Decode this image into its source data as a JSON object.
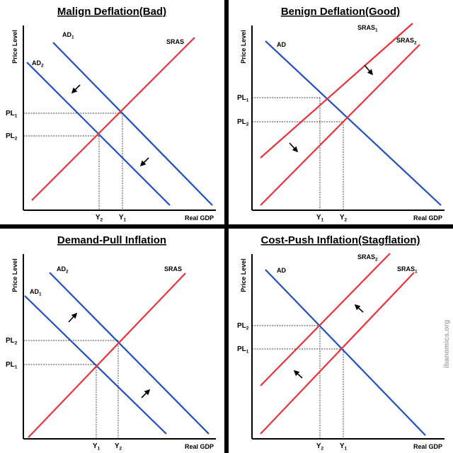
{
  "panels": [
    {
      "title": "Malign Deflation(Bad)",
      "y_axis_label": "Price Level",
      "x_axis_label": "Real GDP",
      "curves": [
        {
          "base": "AD",
          "sub": "1",
          "color": "#1f4fbf"
        },
        {
          "base": "AD",
          "sub": "2",
          "color": "#1f4fbf"
        },
        {
          "base": "SRAS",
          "sub": "",
          "color": "#e8333a"
        }
      ],
      "price_ticks": [
        {
          "base": "PL",
          "sub": "1"
        },
        {
          "base": "PL",
          "sub": "2"
        }
      ],
      "output_ticks": [
        {
          "base": "Y",
          "sub": "2"
        },
        {
          "base": "Y",
          "sub": "1"
        }
      ],
      "arrows": [
        "south-west",
        "south-west"
      ]
    },
    {
      "title": "Benign Deflation(Good)",
      "y_axis_label": "Price Level",
      "x_axis_label": "Real GDP",
      "curves": [
        {
          "base": "AD",
          "sub": "",
          "color": "#1f4fbf"
        },
        {
          "base": "SRAS",
          "sub": "1",
          "color": "#e8333a"
        },
        {
          "base": "SRAS",
          "sub": "2",
          "color": "#e8333a"
        }
      ],
      "price_ticks": [
        {
          "base": "PL",
          "sub": "1"
        },
        {
          "base": "PL",
          "sub": "2"
        }
      ],
      "output_ticks": [
        {
          "base": "Y",
          "sub": "1"
        },
        {
          "base": "Y",
          "sub": "2"
        }
      ],
      "arrows": [
        "south-east",
        "south-east"
      ]
    },
    {
      "title": "Demand-Pull Inflation",
      "y_axis_label": "Price Level",
      "x_axis_label": "Real GDP",
      "curves": [
        {
          "base": "AD",
          "sub": "2",
          "color": "#1f4fbf"
        },
        {
          "base": "AD",
          "sub": "1",
          "color": "#1f4fbf"
        },
        {
          "base": "SRAS",
          "sub": "",
          "color": "#e8333a"
        }
      ],
      "price_ticks": [
        {
          "base": "PL",
          "sub": "2"
        },
        {
          "base": "PL",
          "sub": "1"
        }
      ],
      "output_ticks": [
        {
          "base": "Y",
          "sub": "1"
        },
        {
          "base": "Y",
          "sub": "2"
        }
      ],
      "arrows": [
        "north-east",
        "north-east"
      ]
    },
    {
      "title": "Cost-Push Inflation(Stagflation)",
      "y_axis_label": "Price Level",
      "x_axis_label": "Real GDP",
      "curves": [
        {
          "base": "AD",
          "sub": "",
          "color": "#1f4fbf"
        },
        {
          "base": "SRAS",
          "sub": "2",
          "color": "#e8333a"
        },
        {
          "base": "SRAS",
          "sub": "1",
          "color": "#e8333a"
        }
      ],
      "price_ticks": [
        {
          "base": "PL",
          "sub": "2"
        },
        {
          "base": "PL",
          "sub": "1"
        }
      ],
      "output_ticks": [
        {
          "base": "Y",
          "sub": "2"
        },
        {
          "base": "Y",
          "sub": "1"
        }
      ],
      "arrows": [
        "north-west",
        "north-west"
      ]
    }
  ],
  "watermark": "ibanomics.org"
}
